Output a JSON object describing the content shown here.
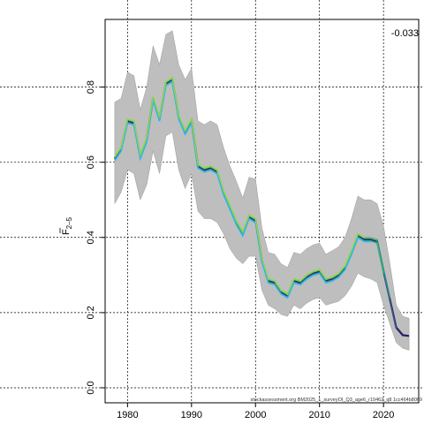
{
  "chart_data": {
    "type": "area",
    "ylabel_main": "F",
    "ylabel_sub": "2–5",
    "xlim": [
      1976.5,
      2025.5
    ],
    "ylim": [
      -0.04,
      0.98
    ],
    "x_ticks": [
      1980,
      1990,
      2000,
      2010,
      2020
    ],
    "y_ticks": [
      0.0,
      0.2,
      0.4,
      0.6,
      0.8
    ],
    "x_tick_labels": [
      "1980",
      "1990",
      "2000",
      "2010",
      "2020"
    ],
    "y_tick_labels": [
      "0.0",
      "0.2",
      "0.4",
      "0.6",
      "0.8"
    ],
    "grid": true,
    "corner_value": "-0.033",
    "source_label": "stockassessment.org BM2025_1_surveyOI_Q3_age6_r10462_q8 1cc464b8069",
    "colors": {
      "band": "#bebebe",
      "base": "#222266",
      "peels": [
        "#2a2b6e",
        "#3b528b",
        "#21908c",
        "#35b779",
        "#5ec962",
        "#29b6f6",
        "#8fd744"
      ]
    },
    "series": [
      {
        "x": [
          1978,
          1979,
          1980,
          1981,
          1982,
          1983,
          1984,
          1985,
          1986,
          1987,
          1988,
          1989,
          1990,
          1991,
          1992,
          1993,
          1994,
          1995,
          1996,
          1997,
          1998,
          1999,
          2000,
          2001,
          2002,
          2003,
          2004,
          2005,
          2006,
          2007,
          2008,
          2009,
          2010,
          2011,
          2012,
          2013,
          2014,
          2015,
          2016,
          2017,
          2018,
          2019,
          2020,
          2021,
          2022,
          2023,
          2024
        ],
        "y": [
          0.61,
          0.635,
          0.71,
          0.705,
          0.615,
          0.66,
          0.77,
          0.715,
          0.81,
          0.82,
          0.72,
          0.68,
          0.71,
          0.59,
          0.58,
          0.585,
          0.575,
          0.52,
          0.48,
          0.44,
          0.41,
          0.455,
          0.445,
          0.34,
          0.285,
          0.28,
          0.255,
          0.245,
          0.285,
          0.28,
          0.295,
          0.305,
          0.31,
          0.285,
          0.29,
          0.3,
          0.32,
          0.36,
          0.405,
          0.395,
          0.395,
          0.39,
          0.31,
          0.235,
          0.16,
          0.14,
          0.138
        ],
        "lower": [
          0.49,
          0.52,
          0.58,
          0.57,
          0.5,
          0.54,
          0.63,
          0.57,
          0.67,
          0.68,
          0.58,
          0.53,
          0.57,
          0.47,
          0.45,
          0.45,
          0.44,
          0.41,
          0.37,
          0.345,
          0.33,
          0.35,
          0.35,
          0.26,
          0.22,
          0.21,
          0.195,
          0.19,
          0.22,
          0.21,
          0.225,
          0.235,
          0.24,
          0.22,
          0.225,
          0.23,
          0.245,
          0.27,
          0.305,
          0.295,
          0.29,
          0.28,
          0.22,
          0.17,
          0.12,
          0.105,
          0.1
        ],
        "upper": [
          0.76,
          0.77,
          0.84,
          0.83,
          0.74,
          0.8,
          0.91,
          0.86,
          0.94,
          0.95,
          0.86,
          0.82,
          0.85,
          0.71,
          0.7,
          0.71,
          0.7,
          0.64,
          0.59,
          0.55,
          0.505,
          0.56,
          0.555,
          0.425,
          0.36,
          0.355,
          0.33,
          0.32,
          0.36,
          0.355,
          0.37,
          0.38,
          0.385,
          0.355,
          0.365,
          0.375,
          0.4,
          0.45,
          0.51,
          0.5,
          0.5,
          0.49,
          0.43,
          0.33,
          0.22,
          0.19,
          0.185
        ]
      },
      {
        "end": 2023,
        "dy": 0.002
      },
      {
        "end": 2022,
        "dy": -0.003
      },
      {
        "end": 2021,
        "dy": 0.004
      },
      {
        "end": 2020,
        "dy": -0.005
      },
      {
        "end": 2019,
        "dy": 0.003
      },
      {
        "end": 2018,
        "dy": -0.006
      },
      {
        "end": 2017,
        "dy": 0.005
      }
    ]
  }
}
